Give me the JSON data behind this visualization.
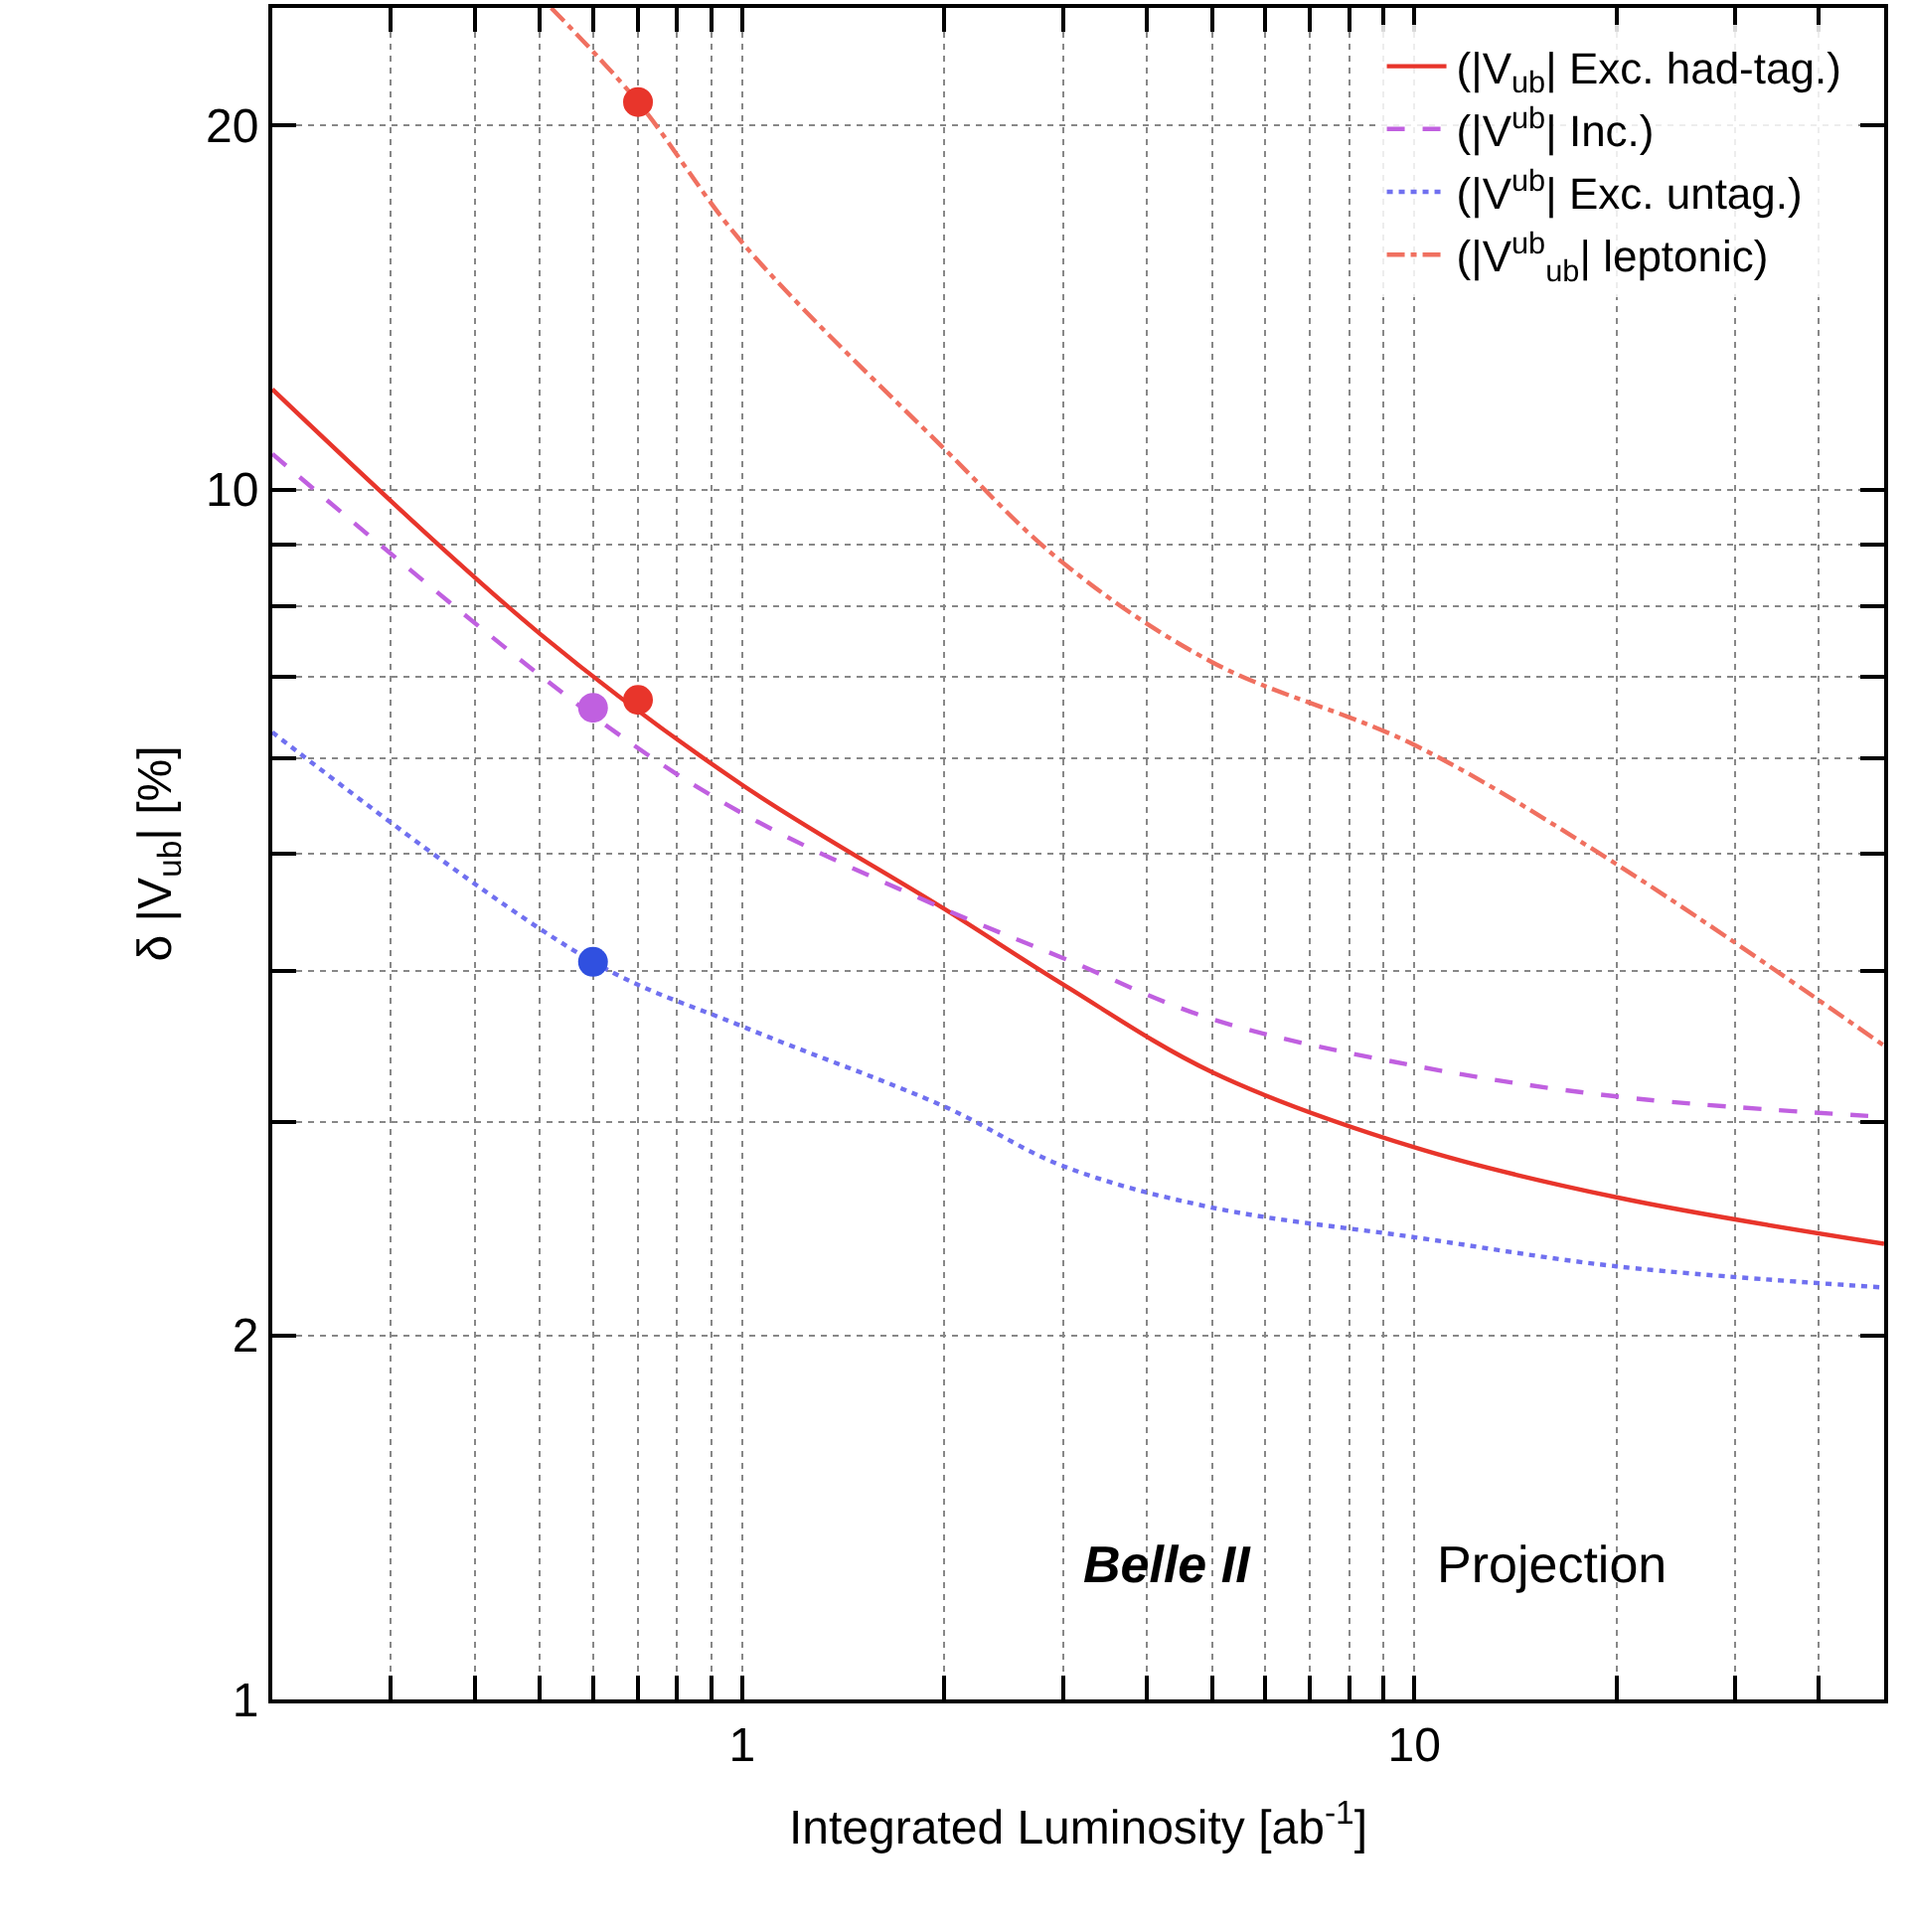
{
  "chart_data": {
    "type": "line",
    "xlabel": "Integrated Luminosity [ab$^{-1}$]",
    "ylabel": "δ |V$_{ub}$| [%]",
    "log": "xy",
    "grid": true,
    "legend": "top right",
    "xlim": [
      0.2,
      50
    ],
    "ylim": [
      1,
      25
    ],
    "xticks": [
      {
        "value": 0.2,
        "label": null
      },
      {
        "value": 0.3,
        "label": null
      },
      {
        "value": 0.4,
        "label": null
      },
      {
        "value": 0.5,
        "label": null
      },
      {
        "value": 0.6,
        "label": null
      },
      {
        "value": 0.7,
        "label": null
      },
      {
        "value": 0.8,
        "label": null
      },
      {
        "value": 0.9,
        "label": null
      },
      1,
      {
        "value": 2,
        "label": null
      },
      {
        "value": 3,
        "label": null
      },
      {
        "value": 4,
        "label": null
      },
      {
        "value": 5,
        "label": null
      },
      {
        "value": 6,
        "label": null
      },
      {
        "value": 7,
        "label": null
      },
      {
        "value": 8,
        "label": null
      },
      {
        "value": 9,
        "label": null
      },
      10,
      {
        "value": 20,
        "label": null
      },
      {
        "value": 30,
        "label": null
      },
      {
        "value": 40,
        "label": null
      },
      {
        "value": 50,
        "label": null
      }
    ],
    "yticks": [
      1,
      2,
      {
        "value": 3,
        "label": null
      },
      {
        "value": 4,
        "label": null
      },
      {
        "value": 5,
        "label": null
      },
      {
        "value": 6,
        "label": null
      },
      {
        "value": 7,
        "label": null
      },
      {
        "value": 8,
        "label": null
      },
      {
        "value": 9,
        "label": null
      },
      10,
      20
    ],
    "annotations": [
      "Belle II",
      "Projection"
    ],
    "series": [
      {
        "name": "(|V$_{ub}$| Exc. had-tag.)",
        "color": "#e8352b",
        "line_style": "solid",
        "marker": "none",
        "x": [
          0.2,
          0.5,
          1,
          2,
          3,
          5,
          10,
          20,
          50
        ],
        "values": [
          12.1,
          7.6,
          5.7,
          4.5,
          3.9,
          3.3,
          2.86,
          2.6,
          2.38
        ]
      },
      {
        "name": "(|V$^{ub}$| Inc.)",
        "color": "#c060e0",
        "line_style": "dashed",
        "marker": "none",
        "x": [
          0.2,
          0.6,
          1,
          2,
          3,
          5,
          10,
          20,
          50
        ],
        "values": [
          10.7,
          6.5,
          5.4,
          4.5,
          4.1,
          3.65,
          3.34,
          3.15,
          3.03
        ]
      },
      {
        "name": "(|V$^{ub}$| Exc. untag.)",
        "color": "#7070f0",
        "line_style": "dotted",
        "marker": "none",
        "x": [
          0.2,
          0.6,
          1,
          2,
          3,
          5,
          10,
          20,
          50
        ],
        "values": [
          6.3,
          4.07,
          3.6,
          3.09,
          2.76,
          2.55,
          2.41,
          2.28,
          2.19
        ]
      },
      {
        "name": "(|V$^{ub}$$_{ub}$| leptonic)",
        "color": "#f07060",
        "line_style": "dashdot",
        "marker": "none",
        "x": [
          0.52,
          0.7,
          1,
          2,
          3,
          5,
          10,
          20,
          50
        ],
        "values": [
          25,
          20.9,
          16,
          10.8,
          8.7,
          7.2,
          6.15,
          4.9,
          3.47
        ]
      },
      {
        "type": "scatter",
        "marker": "circle",
        "color": "#e8352b",
        "x": [
          0.7
        ],
        "values": [
          20.9
        ]
      },
      {
        "type": "scatter",
        "marker": "circle",
        "color": "#e8352b",
        "x": [
          0.7
        ],
        "values": [
          6.7
        ]
      },
      {
        "type": "scatter",
        "marker": "circle",
        "color": "#c060e0",
        "x": [
          0.6
        ],
        "values": [
          6.6
        ]
      },
      {
        "type": "scatter",
        "marker": "circle",
        "color": "#3050e0",
        "x": [
          0.6
        ],
        "values": [
          4.07
        ]
      }
    ]
  }
}
